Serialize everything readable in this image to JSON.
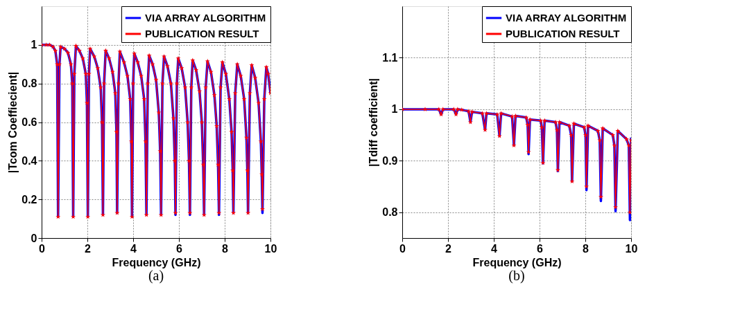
{
  "chart_data": [
    {
      "type": "line",
      "xlabel": "Frequency (GHz)",
      "ylabel": "|Tcom Coeffiecient|",
      "annotations": [
        "(a)"
      ],
      "x": [
        0,
        0.2,
        0.35,
        0.5,
        0.6,
        0.68,
        0.72,
        0.78,
        0.83,
        1.0,
        1.15,
        1.28,
        1.34,
        1.38,
        1.43,
        1.5,
        1.65,
        1.8,
        1.93,
        1.98,
        2.02,
        2.07,
        2.12,
        2.3,
        2.45,
        2.58,
        2.64,
        2.68,
        2.73,
        2.8,
        2.95,
        3.1,
        3.22,
        3.27,
        3.3,
        3.36,
        3.42,
        3.6,
        3.75,
        3.87,
        3.92,
        3.95,
        4.0,
        4.05,
        4.2,
        4.35,
        4.48,
        4.54,
        4.58,
        4.64,
        4.7,
        4.85,
        5.0,
        5.12,
        5.18,
        5.22,
        5.28,
        5.35,
        5.5,
        5.65,
        5.76,
        5.82,
        5.85,
        5.91,
        5.97,
        6.12,
        6.27,
        6.38,
        6.44,
        6.48,
        6.54,
        6.6,
        6.75,
        6.9,
        7.0,
        7.06,
        7.1,
        7.17,
        7.25,
        7.4,
        7.55,
        7.65,
        7.71,
        7.75,
        7.82,
        7.9,
        8.05,
        8.2,
        8.3,
        8.35,
        8.38,
        8.46,
        8.55,
        8.7,
        8.85,
        8.95,
        8.99,
        9.02,
        9.1,
        9.18,
        9.33,
        9.48,
        9.58,
        9.62,
        9.65,
        9.73,
        9.82,
        9.9,
        10.0
      ],
      "series": [
        {
          "name": "VIA ARRAY ALGORITHM",
          "color": "#0000ff",
          "marker": "none",
          "values": [
            1.0,
            1.0,
            1.0,
            0.99,
            0.97,
            0.9,
            0.11,
            0.9,
            0.99,
            0.98,
            0.96,
            0.9,
            0.8,
            0.11,
            0.85,
            0.995,
            0.97,
            0.93,
            0.85,
            0.7,
            0.11,
            0.85,
            0.98,
            0.94,
            0.88,
            0.78,
            0.6,
            0.12,
            0.8,
            0.97,
            0.93,
            0.86,
            0.75,
            0.55,
            0.13,
            0.8,
            0.965,
            0.91,
            0.84,
            0.72,
            0.5,
            0.11,
            0.8,
            0.955,
            0.91,
            0.84,
            0.72,
            0.5,
            0.12,
            0.8,
            0.945,
            0.9,
            0.82,
            0.65,
            0.45,
            0.12,
            0.8,
            0.94,
            0.89,
            0.8,
            0.62,
            0.4,
            0.12,
            0.8,
            0.93,
            0.88,
            0.78,
            0.6,
            0.4,
            0.12,
            0.78,
            0.92,
            0.87,
            0.76,
            0.6,
            0.38,
            0.12,
            0.78,
            0.915,
            0.86,
            0.74,
            0.58,
            0.38,
            0.12,
            0.78,
            0.91,
            0.85,
            0.72,
            0.55,
            0.35,
            0.13,
            0.75,
            0.9,
            0.84,
            0.72,
            0.52,
            0.35,
            0.13,
            0.75,
            0.895,
            0.83,
            0.7,
            0.5,
            0.33,
            0.13,
            0.72,
            0.885,
            0.85,
            0.75
          ]
        },
        {
          "name": "PUBLICATION RESULT",
          "color": "#ff0000",
          "marker": "star",
          "values": [
            1.0,
            1.0,
            1.0,
            0.99,
            0.97,
            0.9,
            0.11,
            0.9,
            0.99,
            0.98,
            0.96,
            0.9,
            0.8,
            0.11,
            0.85,
            0.995,
            0.97,
            0.93,
            0.85,
            0.7,
            0.11,
            0.85,
            0.98,
            0.94,
            0.88,
            0.78,
            0.6,
            0.12,
            0.8,
            0.97,
            0.93,
            0.86,
            0.75,
            0.55,
            0.13,
            0.8,
            0.965,
            0.91,
            0.84,
            0.72,
            0.5,
            0.11,
            0.8,
            0.955,
            0.91,
            0.84,
            0.72,
            0.5,
            0.12,
            0.8,
            0.945,
            0.9,
            0.82,
            0.65,
            0.45,
            0.12,
            0.8,
            0.94,
            0.89,
            0.8,
            0.62,
            0.4,
            0.13,
            0.8,
            0.93,
            0.88,
            0.78,
            0.6,
            0.4,
            0.13,
            0.78,
            0.92,
            0.87,
            0.76,
            0.6,
            0.38,
            0.12,
            0.78,
            0.915,
            0.86,
            0.74,
            0.58,
            0.38,
            0.13,
            0.78,
            0.91,
            0.85,
            0.72,
            0.55,
            0.35,
            0.13,
            0.75,
            0.9,
            0.84,
            0.72,
            0.52,
            0.35,
            0.13,
            0.75,
            0.895,
            0.83,
            0.7,
            0.5,
            0.33,
            0.15,
            0.72,
            0.885,
            0.85,
            0.75
          ]
        }
      ],
      "xlim": [
        0,
        10
      ],
      "xticks": [
        0,
        2,
        4,
        6,
        8,
        10
      ],
      "ylim": [
        0,
        1.2
      ],
      "yticks": [
        0,
        0.2,
        0.4,
        0.6,
        0.8,
        1
      ],
      "grid": true,
      "legend": "top right"
    },
    {
      "type": "line",
      "xlabel": "Frequency (GHz)",
      "ylabel": "|Tdiff coefficient|",
      "annotations": [
        "(b)"
      ],
      "x": [
        0,
        1.0,
        1.6,
        1.7,
        1.78,
        2.25,
        2.35,
        2.42,
        2.6,
        2.9,
        2.98,
        3.05,
        3.5,
        3.62,
        3.68,
        4.15,
        4.25,
        4.32,
        4.8,
        4.88,
        4.95,
        5.42,
        5.48,
        5.52,
        5.58,
        6.05,
        6.1,
        6.15,
        6.22,
        6.7,
        6.76,
        6.8,
        6.87,
        7.3,
        7.38,
        7.42,
        7.5,
        7.95,
        8.01,
        8.05,
        8.12,
        8.55,
        8.63,
        8.68,
        8.76,
        9.2,
        9.27,
        9.32,
        9.42,
        9.8,
        9.9,
        9.95,
        10.0
      ],
      "series": [
        {
          "name": "VIA ARRAY ALGORITHM",
          "color": "#0000ff",
          "marker": "none",
          "values": [
            1.0,
            1.0,
            1.0,
            0.99,
            1.0,
            1.0,
            0.99,
            1.0,
            0.999,
            0.996,
            0.975,
            0.995,
            0.992,
            0.96,
            0.992,
            0.99,
            0.948,
            0.992,
            0.986,
            0.93,
            0.987,
            0.984,
            0.97,
            0.913,
            0.98,
            0.978,
            0.965,
            0.895,
            0.978,
            0.975,
            0.96,
            0.88,
            0.975,
            0.968,
            0.95,
            0.86,
            0.972,
            0.965,
            0.95,
            0.843,
            0.968,
            0.958,
            0.94,
            0.822,
            0.963,
            0.95,
            0.93,
            0.802,
            0.958,
            0.942,
            0.93,
            0.785,
            0.945
          ]
        },
        {
          "name": "PUBLICATION RESULT",
          "color": "#ff0000",
          "marker": "star",
          "values": [
            1.0,
            1.0,
            1.0,
            0.99,
            1.0,
            1.0,
            0.99,
            1.0,
            0.999,
            0.996,
            0.975,
            0.995,
            0.992,
            0.96,
            0.992,
            0.99,
            0.948,
            0.992,
            0.986,
            0.93,
            0.987,
            0.984,
            0.97,
            0.917,
            0.98,
            0.978,
            0.965,
            0.896,
            0.978,
            0.975,
            0.96,
            0.882,
            0.975,
            0.968,
            0.95,
            0.86,
            0.972,
            0.965,
            0.95,
            0.85,
            0.968,
            0.958,
            0.94,
            0.83,
            0.963,
            0.95,
            0.93,
            0.81,
            0.958,
            0.942,
            0.93,
            0.8,
            0.94
          ]
        }
      ],
      "xlim": [
        0,
        10
      ],
      "xticks": [
        0,
        2,
        4,
        6,
        8,
        10
      ],
      "ylim": [
        0.75,
        1.2
      ],
      "yticks": [
        0.8,
        0.9,
        1,
        1.1
      ],
      "grid": true,
      "legend": "top right"
    }
  ]
}
